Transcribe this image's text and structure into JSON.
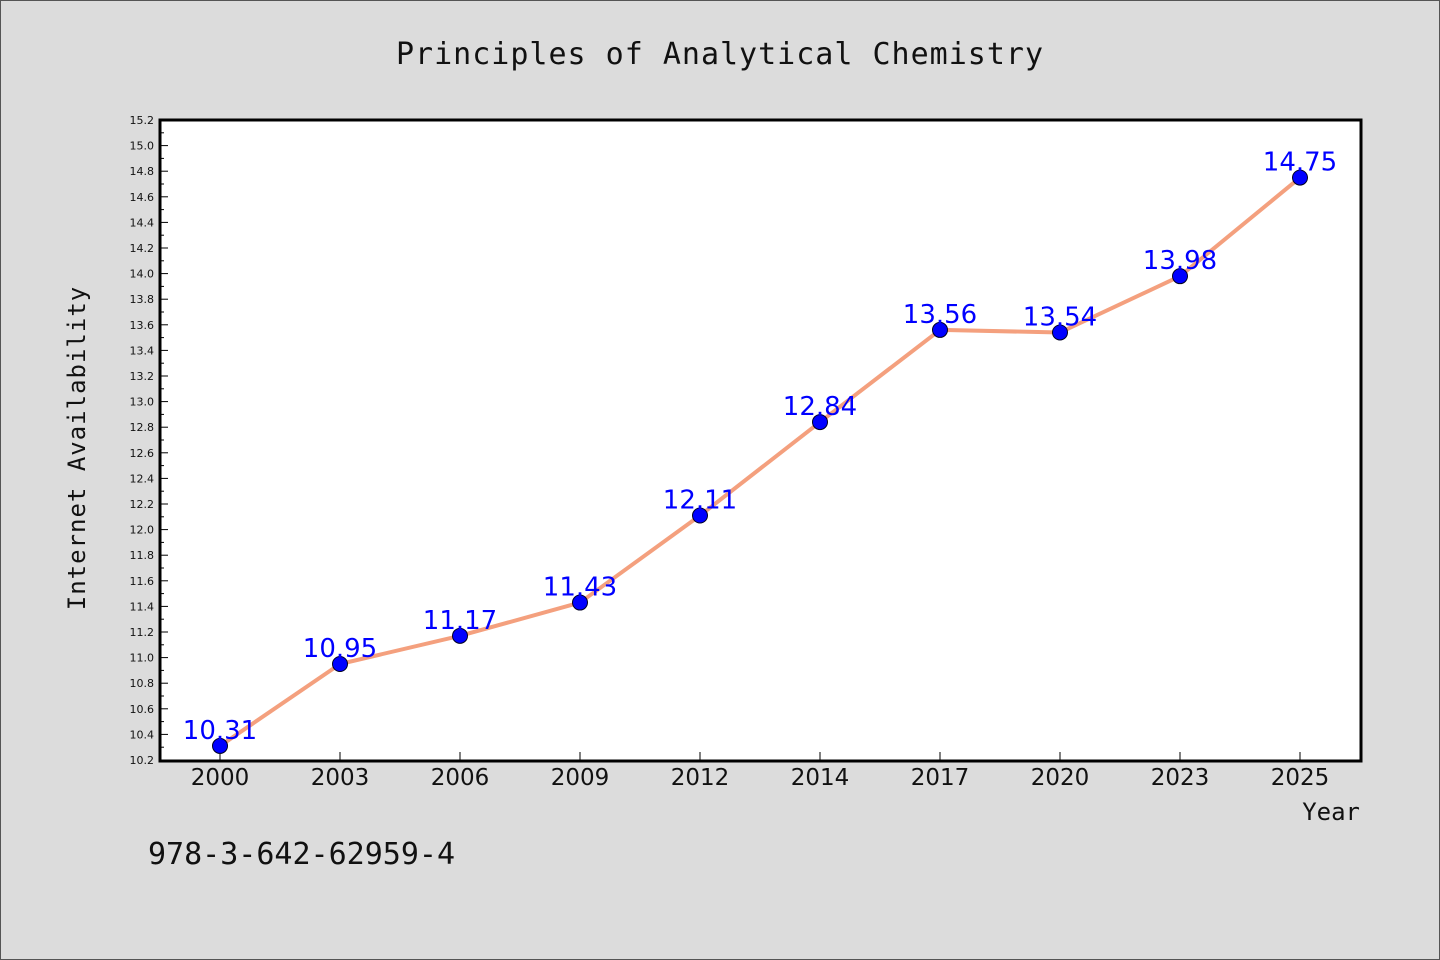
{
  "chart_data": {
    "type": "line",
    "title": "Principles of Analytical Chemistry",
    "xlabel": "Year",
    "ylabel": "Internet Availability",
    "categories": [
      "2000",
      "2003",
      "2006",
      "2009",
      "2012",
      "2014",
      "2017",
      "2020",
      "2023",
      "2025"
    ],
    "series": [
      {
        "values": [
          10.31,
          10.95,
          11.17,
          11.43,
          12.11,
          12.84,
          13.56,
          13.54,
          13.98,
          14.75
        ],
        "labels": [
          "10.31",
          "10.95",
          "11.17",
          "11.43",
          "12.11",
          "12.84",
          "13.56",
          "13.54",
          "13.98",
          "14.75"
        ],
        "line_color": "#f4a07e",
        "marker_color": "#0000ff"
      }
    ],
    "ylim": [
      10.2,
      15.2
    ],
    "yticks": [
      "10.2",
      "10.4",
      "10.6",
      "10.8",
      "11.0",
      "11.2",
      "11.4",
      "11.6",
      "11.8",
      "12.0",
      "12.2",
      "12.4",
      "12.6",
      "12.8",
      "13.0",
      "13.2",
      "13.4",
      "13.6",
      "13.8",
      "14.0",
      "14.2",
      "14.4",
      "14.6",
      "14.8",
      "15.0",
      "15.2"
    ],
    "grid": false
  },
  "footer_text": "978-3-642-62959-4",
  "colors": {
    "background": "#dcdcdc",
    "plot_background": "#ffffff",
    "line": "#f4a07e",
    "marker": "#0000ff",
    "data_label": "#0000ff"
  }
}
